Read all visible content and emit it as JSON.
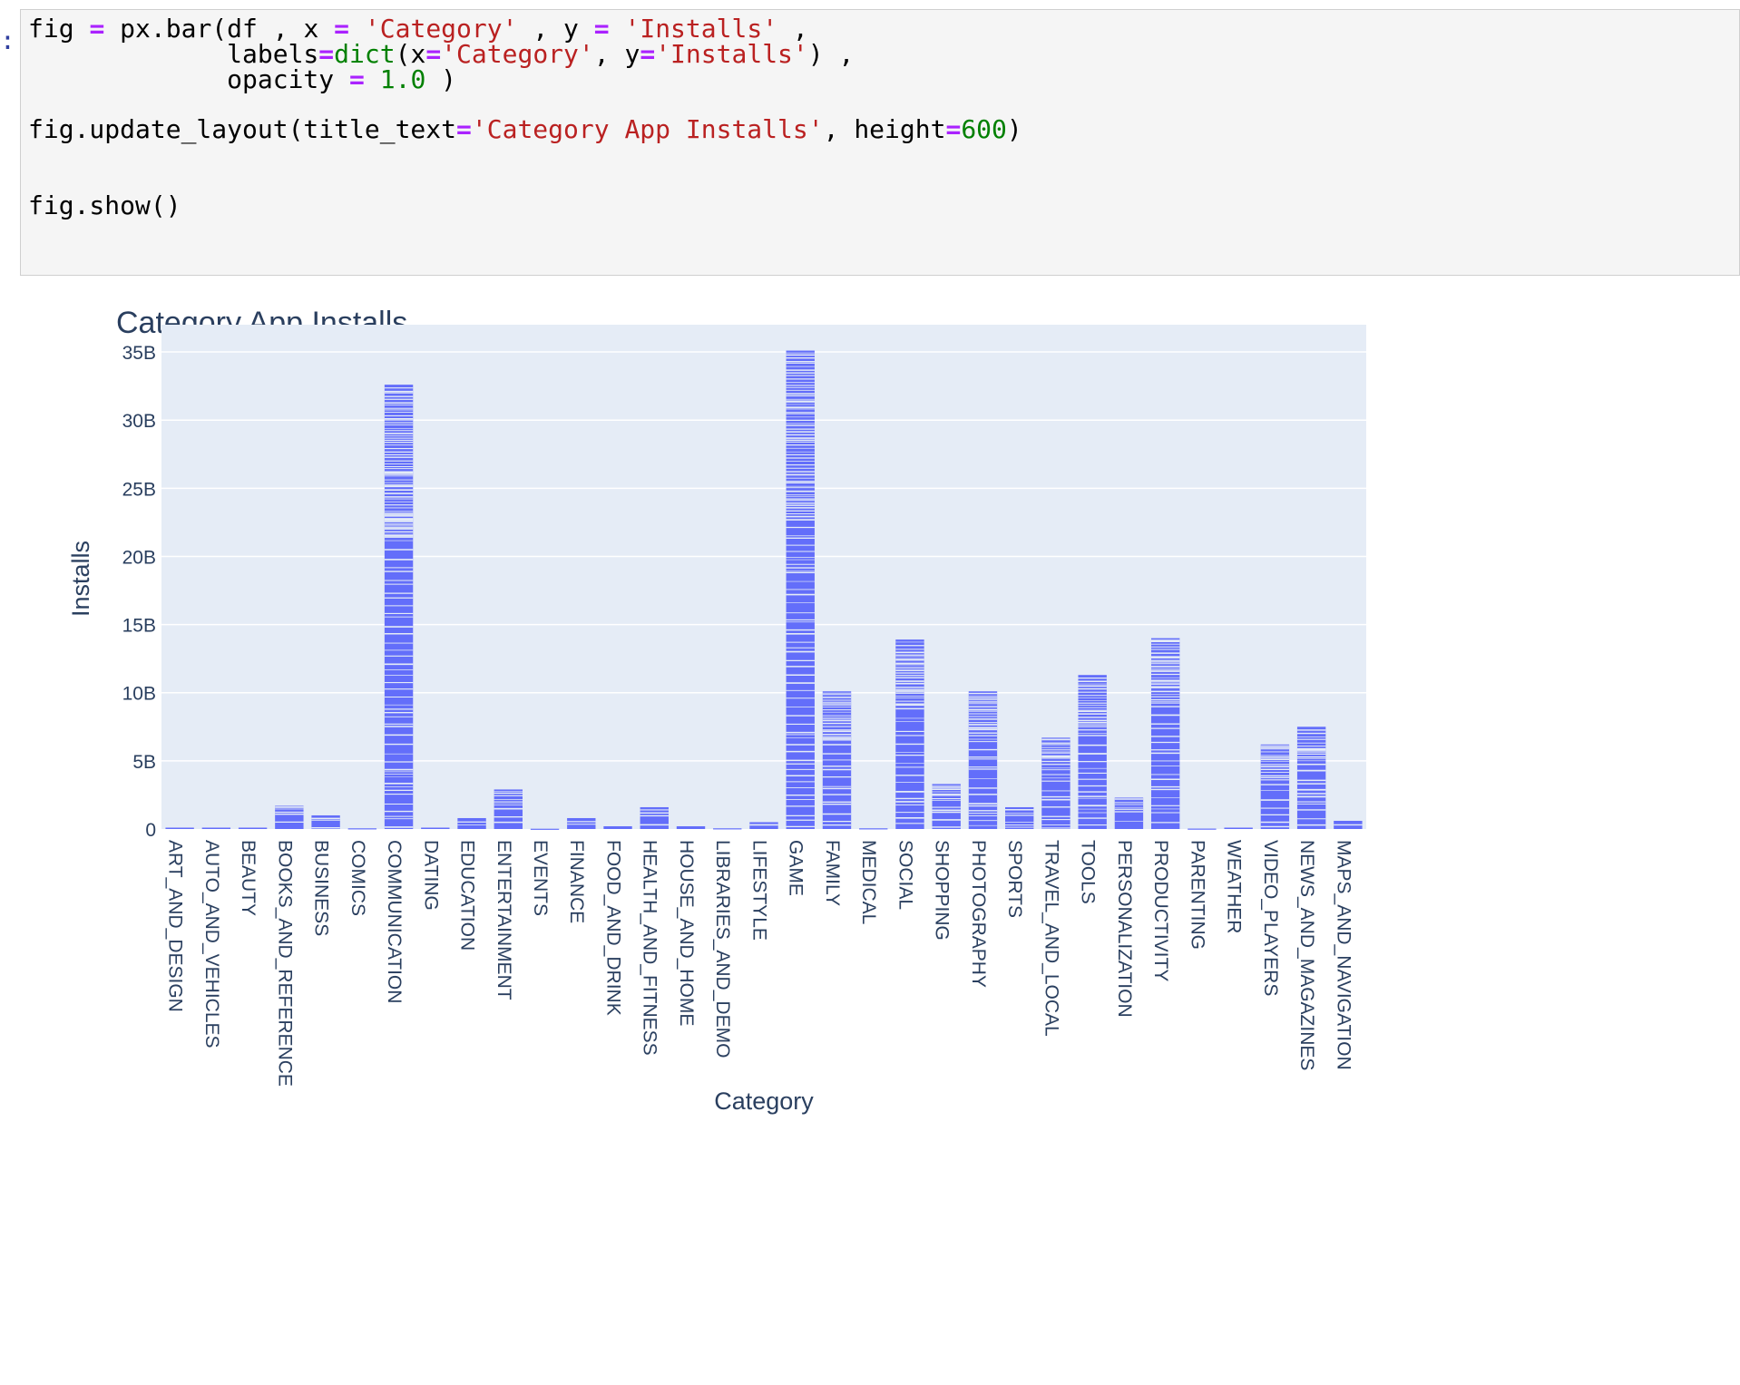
{
  "prompt_marker": ":",
  "code_cell": {
    "lines": [
      [
        {
          "t": "fig "
        },
        {
          "t": "=",
          "c": "kw"
        },
        {
          "t": " px.bar(df , x "
        },
        {
          "t": "=",
          "c": "kw"
        },
        {
          "t": " "
        },
        {
          "t": "'Category'",
          "c": "str"
        },
        {
          "t": " , y "
        },
        {
          "t": "=",
          "c": "kw"
        },
        {
          "t": " "
        },
        {
          "t": "'Installs'",
          "c": "str"
        },
        {
          "t": " ,"
        }
      ],
      [
        {
          "t": "             labels"
        },
        {
          "t": "=",
          "c": "kw"
        },
        {
          "t": "dict",
          "c": "bi"
        },
        {
          "t": "(x"
        },
        {
          "t": "=",
          "c": "kw"
        },
        {
          "t": "'Category'",
          "c": "str"
        },
        {
          "t": ", y"
        },
        {
          "t": "=",
          "c": "kw"
        },
        {
          "t": "'Installs'",
          "c": "str"
        },
        {
          "t": ") ,"
        }
      ],
      [
        {
          "t": "             opacity "
        },
        {
          "t": "=",
          "c": "kw"
        },
        {
          "t": " "
        },
        {
          "t": "1.0",
          "c": "num"
        },
        {
          "t": " )"
        }
      ],
      [
        {
          "t": ""
        }
      ],
      [
        {
          "t": "fig.update_layout(title_text"
        },
        {
          "t": "=",
          "c": "kw"
        },
        {
          "t": "'Category App Installs'",
          "c": "str"
        },
        {
          "t": ", height"
        },
        {
          "t": "=",
          "c": "kw"
        },
        {
          "t": "600",
          "c": "num"
        },
        {
          "t": ")"
        }
      ],
      [
        {
          "t": ""
        }
      ],
      [
        {
          "t": ""
        }
      ],
      [
        {
          "t": "fig.show()"
        }
      ]
    ]
  },
  "chart_data": {
    "type": "bar",
    "title": "Category App Installs",
    "xlabel": "Category",
    "ylabel": "Installs",
    "ylim": [
      0,
      37
    ],
    "y_tick_values": [
      0,
      5,
      10,
      15,
      20,
      25,
      30,
      35
    ],
    "y_tick_labels": [
      "0",
      "5B",
      "10B",
      "15B",
      "20B",
      "25B",
      "30B",
      "35B"
    ],
    "value_unit": "billions",
    "bar_color": "#636efa",
    "plot_background": "#e5ecf6",
    "grid": true,
    "stacked_segments": true,
    "categories": [
      "ART_AND_DESIGN",
      "AUTO_AND_VEHICLES",
      "BEAUTY",
      "BOOKS_AND_REFERENCE",
      "BUSINESS",
      "COMICS",
      "COMMUNICATION",
      "DATING",
      "EDUCATION",
      "ENTERTAINMENT",
      "EVENTS",
      "FINANCE",
      "FOOD_AND_DRINK",
      "HEALTH_AND_FITNESS",
      "HOUSE_AND_HOME",
      "LIBRARIES_AND_DEMO",
      "LIFESTYLE",
      "GAME",
      "FAMILY",
      "MEDICAL",
      "SOCIAL",
      "SHOPPING",
      "PHOTOGRAPHY",
      "SPORTS",
      "TRAVEL_AND_LOCAL",
      "TOOLS",
      "PERSONALIZATION",
      "PRODUCTIVITY",
      "PARENTING",
      "WEATHER",
      "VIDEO_PLAYERS",
      "NEWS_AND_MAGAZINES",
      "MAPS_AND_NAVIGATION"
    ],
    "values": [
      0.1,
      0.1,
      0.1,
      1.7,
      1.0,
      0.05,
      32.6,
      0.1,
      0.8,
      2.9,
      0.02,
      0.8,
      0.2,
      1.6,
      0.2,
      0.05,
      0.5,
      35.1,
      10.1,
      0.05,
      13.9,
      3.3,
      10.1,
      1.6,
      6.7,
      11.3,
      2.3,
      14.0,
      0.03,
      0.1,
      6.2,
      7.5,
      0.6
    ]
  }
}
